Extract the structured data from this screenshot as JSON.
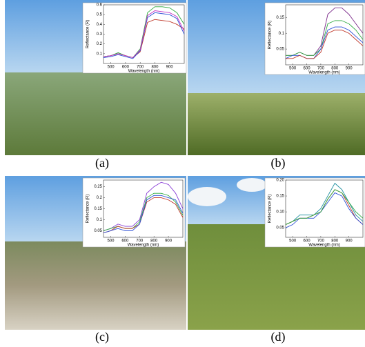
{
  "panels": [
    {
      "label": "(a)"
    },
    {
      "label": "(b)"
    },
    {
      "label": "(c)"
    },
    {
      "label": "(d)"
    }
  ],
  "chart_data": [
    {
      "type": "line",
      "xlabel": "Wavelength (nm)",
      "ylabel": "Reflectance (R)",
      "x": [
        450,
        500,
        550,
        600,
        650,
        700,
        750,
        800,
        850,
        900,
        950,
        1000
      ],
      "xlim": [
        450,
        1000
      ],
      "xticks": [
        500,
        600,
        700,
        800,
        900
      ],
      "ylim": [
        0,
        0.6
      ],
      "yticks": [
        0.1,
        0.2,
        0.3,
        0.4,
        0.5,
        0.6
      ],
      "series": [
        {
          "color": "#c0392b",
          "values": [
            0.07,
            0.08,
            0.1,
            0.08,
            0.06,
            0.12,
            0.42,
            0.45,
            0.44,
            0.43,
            0.4,
            0.35
          ]
        },
        {
          "color": "#2eaa3f",
          "values": [
            0.07,
            0.08,
            0.11,
            0.08,
            0.06,
            0.15,
            0.52,
            0.58,
            0.58,
            0.57,
            0.52,
            0.4
          ]
        },
        {
          "color": "#2c4fd6",
          "values": [
            0.06,
            0.07,
            0.09,
            0.07,
            0.05,
            0.13,
            0.47,
            0.52,
            0.51,
            0.5,
            0.46,
            0.3
          ]
        },
        {
          "color": "#c535c5",
          "values": [
            0.07,
            0.08,
            0.1,
            0.08,
            0.06,
            0.14,
            0.49,
            0.54,
            0.53,
            0.52,
            0.48,
            0.33
          ]
        }
      ]
    },
    {
      "type": "line",
      "xlabel": "Wavelength (nm)",
      "ylabel": "Reflectance (R)",
      "x": [
        450,
        500,
        550,
        600,
        650,
        700,
        750,
        800,
        850,
        900,
        950,
        1000
      ],
      "xlim": [
        450,
        1000
      ],
      "xticks": [
        500,
        600,
        700,
        800,
        900
      ],
      "ylim": [
        0,
        0.19
      ],
      "yticks": [
        0.05,
        0.1,
        0.15
      ],
      "series": [
        {
          "color": "#7b2a8a",
          "values": [
            0.03,
            0.03,
            0.04,
            0.03,
            0.03,
            0.06,
            0.16,
            0.18,
            0.18,
            0.16,
            0.13,
            0.1
          ]
        },
        {
          "color": "#2eaa3f",
          "values": [
            0.03,
            0.03,
            0.04,
            0.03,
            0.03,
            0.05,
            0.13,
            0.14,
            0.14,
            0.13,
            0.11,
            0.08
          ]
        },
        {
          "color": "#2c4fd6",
          "values": [
            0.02,
            0.03,
            0.03,
            0.02,
            0.02,
            0.05,
            0.11,
            0.12,
            0.12,
            0.11,
            0.09,
            0.07
          ]
        },
        {
          "color": "#c0392b",
          "values": [
            0.02,
            0.02,
            0.03,
            0.02,
            0.02,
            0.04,
            0.1,
            0.11,
            0.11,
            0.1,
            0.08,
            0.06
          ]
        }
      ]
    },
    {
      "type": "line",
      "xlabel": "Wavelength (nm)",
      "ylabel": "Reflectance (R)",
      "x": [
        450,
        500,
        550,
        600,
        650,
        700,
        750,
        800,
        850,
        900,
        950,
        1000
      ],
      "xlim": [
        450,
        1000
      ],
      "xticks": [
        500,
        600,
        700,
        800,
        900
      ],
      "ylim": [
        0.02,
        0.28
      ],
      "yticks": [
        0.05,
        0.1,
        0.15,
        0.2,
        0.25
      ],
      "series": [
        {
          "color": "#8a3fd6",
          "values": [
            0.05,
            0.06,
            0.08,
            0.07,
            0.07,
            0.1,
            0.22,
            0.25,
            0.27,
            0.26,
            0.22,
            0.15
          ]
        },
        {
          "color": "#2eaa3f",
          "values": [
            0.05,
            0.06,
            0.07,
            0.06,
            0.06,
            0.09,
            0.2,
            0.22,
            0.22,
            0.21,
            0.18,
            0.12
          ]
        },
        {
          "color": "#c0392b",
          "values": [
            0.04,
            0.05,
            0.07,
            0.06,
            0.06,
            0.08,
            0.18,
            0.2,
            0.2,
            0.19,
            0.17,
            0.11
          ]
        },
        {
          "color": "#2c4fd6",
          "values": [
            0.04,
            0.05,
            0.06,
            0.05,
            0.05,
            0.08,
            0.19,
            0.21,
            0.21,
            0.2,
            0.19,
            0.13
          ]
        }
      ]
    },
    {
      "type": "line",
      "xlabel": "Wavelength (nm)",
      "ylabel": "Reflectance (R)",
      "x": [
        450,
        500,
        550,
        600,
        650,
        700,
        750,
        800,
        850,
        900,
        950,
        1000
      ],
      "xlim": [
        450,
        1000
      ],
      "xticks": [
        500,
        600,
        700,
        800,
        900
      ],
      "ylim": [
        0.02,
        0.2
      ],
      "yticks": [
        0.05,
        {
          "value": 0.1,
          "label": "0.10"
        },
        0.15,
        {
          "value": 0.2,
          "label": "0.20"
        }
      ],
      "series": [
        {
          "color": "#1f8fa0",
          "values": [
            0.06,
            0.07,
            0.09,
            0.09,
            0.09,
            0.11,
            0.15,
            0.19,
            0.17,
            0.13,
            0.09,
            0.07
          ]
        },
        {
          "color": "#c0392b",
          "values": [
            0.06,
            0.07,
            0.08,
            0.08,
            0.09,
            0.1,
            0.14,
            0.17,
            0.16,
            0.12,
            0.08,
            0.06
          ]
        },
        {
          "color": "#2c4fd6",
          "values": [
            0.05,
            0.06,
            0.08,
            0.08,
            0.08,
            0.1,
            0.13,
            0.16,
            0.15,
            0.11,
            0.08,
            0.06
          ]
        },
        {
          "color": "#2eaa3f",
          "values": [
            0.06,
            0.07,
            0.08,
            0.08,
            0.09,
            0.1,
            0.14,
            0.17,
            0.16,
            0.13,
            0.1,
            0.08
          ]
        }
      ]
    }
  ]
}
